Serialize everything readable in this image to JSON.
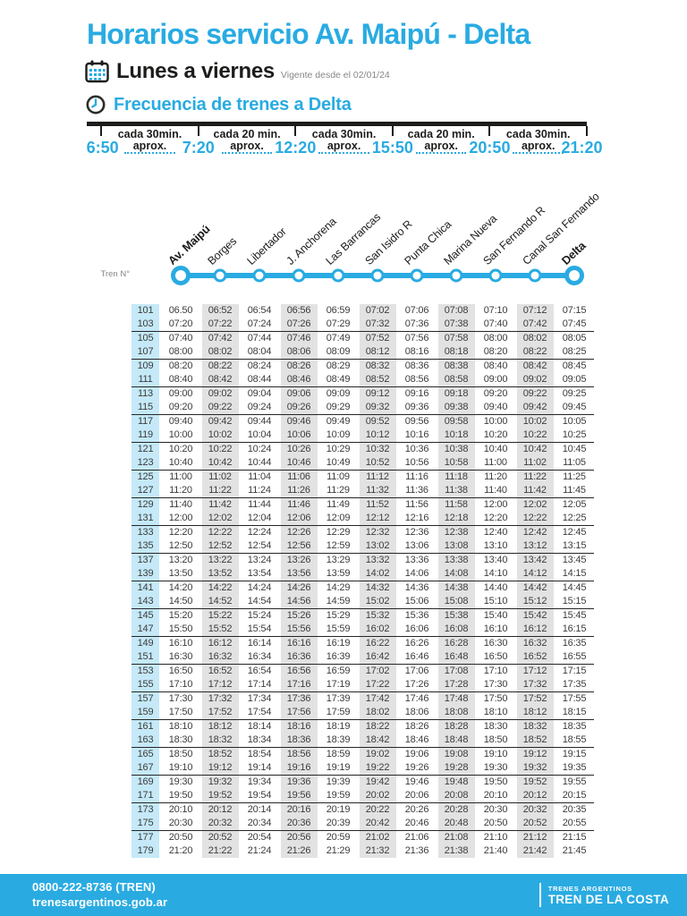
{
  "page": {
    "title": "Horarios servicio Av. Maipú - Delta",
    "schedule_days": "Lunes a viernes",
    "valid_from": "Vigente desde el 02/01/24",
    "frequency_title": "Frecuencia de trenes a Delta"
  },
  "colors": {
    "accent": "#29abe2",
    "dark": "#1d1d1b",
    "gray_text": "#878787",
    "column_gray": "#e2e2e2",
    "column_blue": "#c5e9f8"
  },
  "frequency_timeline": {
    "times": [
      "6:50",
      "7:20",
      "12:20",
      "15:50",
      "20:50",
      "21:20"
    ],
    "segments": [
      {
        "line1": "cada 30min.",
        "line2": "aprox."
      },
      {
        "line1": "cada 20 min.",
        "line2": "aprox."
      },
      {
        "line1": "cada 30min.",
        "line2": "aprox."
      },
      {
        "line1": "cada 20 min.",
        "line2": "aprox."
      },
      {
        "line1": "cada 30min.",
        "line2": "aprox."
      }
    ]
  },
  "route": {
    "train_col_label": "Tren N°",
    "stations": [
      "Av. Maipú",
      "Borges",
      "Libertador",
      "J. Anchorena",
      "Las Barrancas",
      "San Isidro R",
      "Punta Chica",
      "Marina Nueva",
      "San Fernando R",
      "Canal San Fernando",
      "Delta"
    ]
  },
  "timetable": {
    "rows": [
      {
        "train": "101",
        "times": [
          "06.50",
          "06:52",
          "06:54",
          "06:56",
          "06:59",
          "07:02",
          "07:06",
          "07:08",
          "07:10",
          "07:12",
          "07:15"
        ]
      },
      {
        "train": "103",
        "times": [
          "07:20",
          "07:22",
          "07:24",
          "07:26",
          "07:29",
          "07:32",
          "07:36",
          "07:38",
          "07:40",
          "07:42",
          "07:45"
        ]
      },
      {
        "train": "105",
        "times": [
          "07:40",
          "07:42",
          "07:44",
          "07:46",
          "07:49",
          "07:52",
          "07:56",
          "07:58",
          "08:00",
          "08:02",
          "08:05"
        ]
      },
      {
        "train": "107",
        "times": [
          "08:00",
          "08:02",
          "08:04",
          "08:06",
          "08:09",
          "08:12",
          "08:16",
          "08:18",
          "08:20",
          "08:22",
          "08:25"
        ]
      },
      {
        "train": "109",
        "times": [
          "08:20",
          "08:22",
          "08:24",
          "08:26",
          "08:29",
          "08:32",
          "08:36",
          "08:38",
          "08:40",
          "08:42",
          "08:45"
        ]
      },
      {
        "train": "111",
        "times": [
          "08:40",
          "08:42",
          "08:44",
          "08:46",
          "08:49",
          "08:52",
          "08:56",
          "08:58",
          "09:00",
          "09:02",
          "09:05"
        ]
      },
      {
        "train": "113",
        "times": [
          "09:00",
          "09:02",
          "09:04",
          "09:06",
          "09:09",
          "09:12",
          "09:16",
          "09:18",
          "09:20",
          "09:22",
          "09:25"
        ]
      },
      {
        "train": "115",
        "times": [
          "09:20",
          "09:22",
          "09:24",
          "09:26",
          "09:29",
          "09:32",
          "09:36",
          "09:38",
          "09:40",
          "09:42",
          "09:45"
        ]
      },
      {
        "train": "117",
        "times": [
          "09:40",
          "09:42",
          "09:44",
          "09:46",
          "09:49",
          "09:52",
          "09:56",
          "09:58",
          "10:00",
          "10:02",
          "10:05"
        ]
      },
      {
        "train": "119",
        "times": [
          "10:00",
          "10:02",
          "10:04",
          "10:06",
          "10:09",
          "10:12",
          "10:16",
          "10:18",
          "10:20",
          "10:22",
          "10:25"
        ]
      },
      {
        "train": "121",
        "times": [
          "10:20",
          "10:22",
          "10:24",
          "10:26",
          "10:29",
          "10:32",
          "10:36",
          "10:38",
          "10:40",
          "10:42",
          "10:45"
        ]
      },
      {
        "train": "123",
        "times": [
          "10:40",
          "10:42",
          "10:44",
          "10:46",
          "10:49",
          "10:52",
          "10:56",
          "10:58",
          "11:00",
          "11:02",
          "11:05"
        ]
      },
      {
        "train": "125",
        "times": [
          "11:00",
          "11:02",
          "11:04",
          "11:06",
          "11:09",
          "11:12",
          "11:16",
          "11:18",
          "11:20",
          "11:22",
          "11:25"
        ]
      },
      {
        "train": "127",
        "times": [
          "11:20",
          "11:22",
          "11:24",
          "11:26",
          "11:29",
          "11:32",
          "11:36",
          "11:38",
          "11:40",
          "11:42",
          "11:45"
        ]
      },
      {
        "train": "129",
        "times": [
          "11:40",
          "11:42",
          "11:44",
          "11:46",
          "11:49",
          "11:52",
          "11:56",
          "11:58",
          "12:00",
          "12:02",
          "12:05"
        ]
      },
      {
        "train": "131",
        "times": [
          "12:00",
          "12:02",
          "12:04",
          "12:06",
          "12:09",
          "12:12",
          "12:16",
          "12:18",
          "12:20",
          "12:22",
          "12:25"
        ]
      },
      {
        "train": "133",
        "times": [
          "12:20",
          "12:22",
          "12:24",
          "12:26",
          "12:29",
          "12:32",
          "12:36",
          "12:38",
          "12:40",
          "12:42",
          "12:45"
        ]
      },
      {
        "train": "135",
        "times": [
          "12:50",
          "12:52",
          "12:54",
          "12:56",
          "12:59",
          "13:02",
          "13:06",
          "13:08",
          "13:10",
          "13:12",
          "13:15"
        ]
      },
      {
        "train": "137",
        "times": [
          "13:20",
          "13:22",
          "13:24",
          "13:26",
          "13:29",
          "13:32",
          "13:36",
          "13:38",
          "13:40",
          "13:42",
          "13:45"
        ]
      },
      {
        "train": "139",
        "times": [
          "13:50",
          "13:52",
          "13:54",
          "13:56",
          "13:59",
          "14:02",
          "14:06",
          "14:08",
          "14:10",
          "14:12",
          "14:15"
        ]
      },
      {
        "train": "141",
        "times": [
          "14:20",
          "14:22",
          "14:24",
          "14:26",
          "14:29",
          "14:32",
          "14:36",
          "14:38",
          "14:40",
          "14:42",
          "14:45"
        ]
      },
      {
        "train": "143",
        "times": [
          "14:50",
          "14:52",
          "14:54",
          "14:56",
          "14:59",
          "15:02",
          "15:06",
          "15:08",
          "15:10",
          "15:12",
          "15:15"
        ]
      },
      {
        "train": "145",
        "times": [
          "15:20",
          "15:22",
          "15:24",
          "15:26",
          "15:29",
          "15:32",
          "15:36",
          "15:38",
          "15:40",
          "15:42",
          "15:45"
        ]
      },
      {
        "train": "147",
        "times": [
          "15:50",
          "15:52",
          "15:54",
          "15:56",
          "15:59",
          "16:02",
          "16:06",
          "16:08",
          "16:10",
          "16:12",
          "16:15"
        ]
      },
      {
        "train": "149",
        "times": [
          "16:10",
          "16:12",
          "16:14",
          "16:16",
          "16:19",
          "16:22",
          "16:26",
          "16:28",
          "16:30",
          "16:32",
          "16:35"
        ]
      },
      {
        "train": "151",
        "times": [
          "16:30",
          "16:32",
          "16:34",
          "16:36",
          "16:39",
          "16:42",
          "16:46",
          "16:48",
          "16:50",
          "16:52",
          "16:55"
        ]
      },
      {
        "train": "153",
        "times": [
          "16:50",
          "16:52",
          "16:54",
          "16:56",
          "16:59",
          "17:02",
          "17:06",
          "17:08",
          "17:10",
          "17:12",
          "17:15"
        ]
      },
      {
        "train": "155",
        "times": [
          "17:10",
          "17:12",
          "17:14",
          "17:16",
          "17:19",
          "17:22",
          "17:26",
          "17:28",
          "17:30",
          "17:32",
          "17:35"
        ]
      },
      {
        "train": "157",
        "times": [
          "17:30",
          "17:32",
          "17:34",
          "17:36",
          "17:39",
          "17:42",
          "17:46",
          "17:48",
          "17:50",
          "17:52",
          "17:55"
        ]
      },
      {
        "train": "159",
        "times": [
          "17:50",
          "17:52",
          "17:54",
          "17:56",
          "17:59",
          "18:02",
          "18:06",
          "18:08",
          "18:10",
          "18:12",
          "18:15"
        ]
      },
      {
        "train": "161",
        "times": [
          "18:10",
          "18:12",
          "18:14",
          "18:16",
          "18:19",
          "18:22",
          "18:26",
          "18:28",
          "18:30",
          "18:32",
          "18:35"
        ]
      },
      {
        "train": "163",
        "times": [
          "18:30",
          "18:32",
          "18:34",
          "18:36",
          "18:39",
          "18:42",
          "18:46",
          "18:48",
          "18:50",
          "18:52",
          "18:55"
        ]
      },
      {
        "train": "165",
        "times": [
          "18:50",
          "18:52",
          "18:54",
          "18:56",
          "18:59",
          "19:02",
          "19:06",
          "19:08",
          "19:10",
          "19:12",
          "19:15"
        ]
      },
      {
        "train": "167",
        "times": [
          "19:10",
          "19:12",
          "19:14",
          "19:16",
          "19:19",
          "19:22",
          "19:26",
          "19:28",
          "19:30",
          "19:32",
          "19:35"
        ]
      },
      {
        "train": "169",
        "times": [
          "19:30",
          "19:32",
          "19:34",
          "19:36",
          "19:39",
          "19:42",
          "19:46",
          "19:48",
          "19:50",
          "19:52",
          "19:55"
        ]
      },
      {
        "train": "171",
        "times": [
          "19:50",
          "19:52",
          "19:54",
          "19:56",
          "19:59",
          "20:02",
          "20:06",
          "20:08",
          "20:10",
          "20:12",
          "20:15"
        ]
      },
      {
        "train": "173",
        "times": [
          "20:10",
          "20:12",
          "20:14",
          "20:16",
          "20:19",
          "20:22",
          "20:26",
          "20:28",
          "20:30",
          "20:32",
          "20:35"
        ]
      },
      {
        "train": "175",
        "times": [
          "20:30",
          "20:32",
          "20:34",
          "20:36",
          "20:39",
          "20:42",
          "20:46",
          "20:48",
          "20:50",
          "20:52",
          "20:55"
        ]
      },
      {
        "train": "177",
        "times": [
          "20:50",
          "20:52",
          "20:54",
          "20:56",
          "20:59",
          "21:02",
          "21:06",
          "21:08",
          "21:10",
          "21:12",
          "21:15"
        ]
      },
      {
        "train": "179",
        "times": [
          "21:20",
          "21:22",
          "21:24",
          "21:26",
          "21:29",
          "21:32",
          "21:36",
          "21:38",
          "21:40",
          "21:42",
          "21:45"
        ]
      }
    ]
  },
  "footer": {
    "phone": "0800-222-8736 (TREN)",
    "website": "trenesargentinos.gob.ar",
    "brand_top": "TRENES ARGENTINOS",
    "brand_bottom": "TREN DE LA COSTA"
  }
}
